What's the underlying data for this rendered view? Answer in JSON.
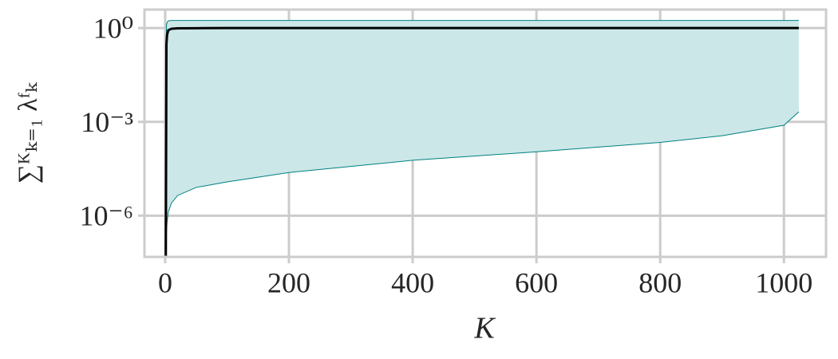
{
  "chart_data": {
    "type": "line",
    "x_label": "K",
    "y_label": "∑ᴷₖ₌₁ λᶠₖ",
    "x": [
      1,
      2,
      3,
      5,
      10,
      20,
      50,
      100,
      200,
      400,
      600,
      800,
      900,
      1000,
      1024
    ],
    "series": [
      {
        "color": "#000000",
        "values": [
          5e-08,
          0.3,
          0.6,
          0.85,
          0.95,
          0.98,
          0.99,
          1,
          1,
          1,
          1,
          1,
          1,
          1,
          1
        ]
      }
    ],
    "band": {
      "color": "#008080",
      "fill": "#cce7e8",
      "lower": [
        5e-08,
        3e-07,
        6e-07,
        1.3e-06,
        2.5e-06,
        4.4e-06,
        8e-06,
        1.2e-05,
        2.4e-05,
        5.9e-05,
        0.00011,
        0.00022,
        0.00036,
        0.00078,
        0.0021
      ],
      "upper": [
        5e-08,
        1.2,
        1.5,
        1.7,
        1.75,
        1.75,
        1.75,
        1.75,
        1.75,
        1.75,
        1.75,
        1.75,
        1.75,
        1.75,
        1.75
      ]
    },
    "xlim": [
      -33.5,
      1068
    ],
    "ylim": [
      4.8e-08,
      3.9
    ],
    "xticks": [
      0,
      200,
      400,
      600,
      800,
      1000
    ],
    "yticks": [
      {
        "value": 1,
        "label": "10⁰"
      },
      {
        "value": 0.001,
        "label": "10⁻³"
      },
      {
        "value": 1e-06,
        "label": "10⁻⁶"
      }
    ],
    "yscale": "log",
    "grid": true
  }
}
